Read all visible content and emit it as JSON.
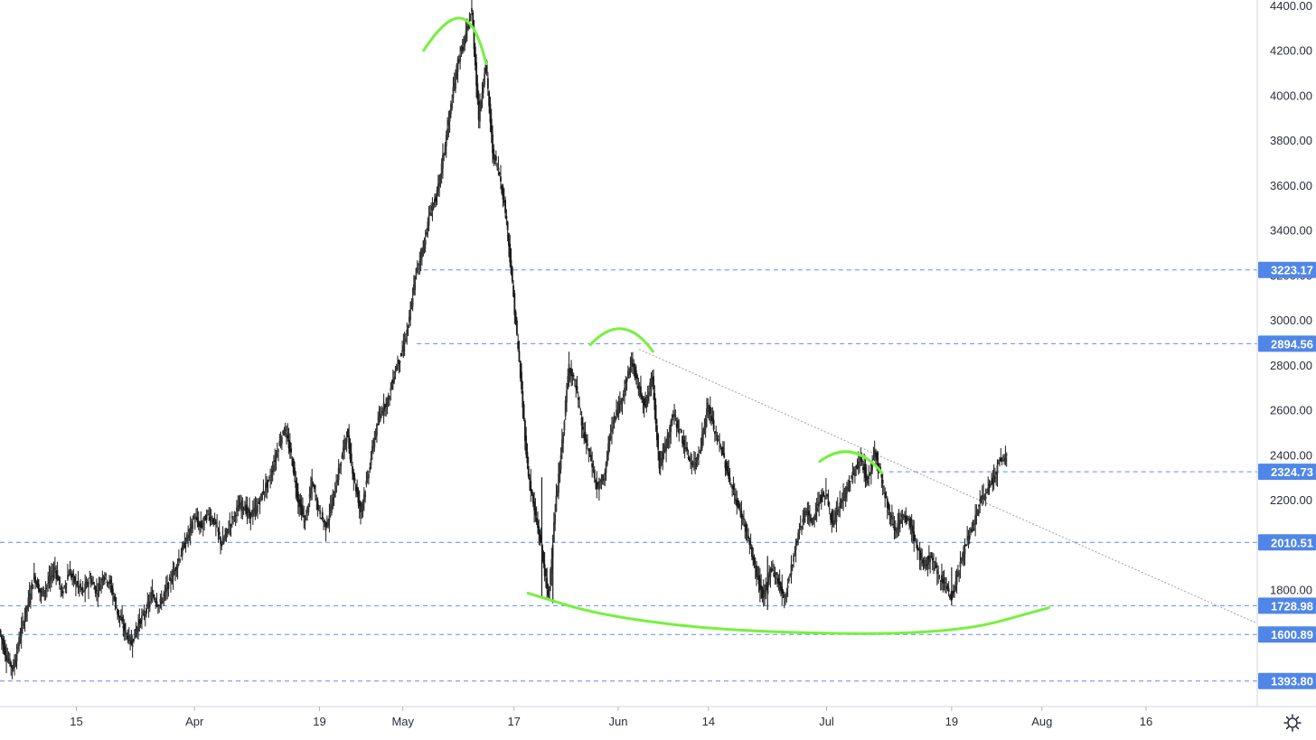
{
  "chart_data": {
    "type": "candlestick",
    "y_ticks": [
      1800,
      2000,
      2200,
      2400,
      2600,
      2800,
      3000,
      3200,
      3400,
      3600,
      3800,
      4000,
      4200,
      4400
    ],
    "y_tick_labels": [
      "1800.00",
      "2000.00",
      "2200.00",
      "2400.00",
      "2600.00",
      "2800.00",
      "3000.00",
      "3200.00",
      "3400.00",
      "3600.00",
      "3800.00",
      "4000.00",
      "4200.00",
      "4400.00"
    ],
    "ylim": [
      1280,
      4400
    ],
    "x_ticks": [
      {
        "day": 14,
        "label": "15"
      },
      {
        "day": 31,
        "label": "Apr"
      },
      {
        "day": 49,
        "label": "19"
      },
      {
        "day": 61,
        "label": "May"
      },
      {
        "day": 77,
        "label": "17"
      },
      {
        "day": 92,
        "label": "Jun"
      },
      {
        "day": 105,
        "label": "14"
      },
      {
        "day": 122,
        "label": "Jul"
      },
      {
        "day": 140,
        "label": "19"
      },
      {
        "day": 153,
        "label": "Aug"
      },
      {
        "day": 168,
        "label": "16"
      }
    ],
    "xlim": [
      3,
      184
    ],
    "levels": [
      {
        "value": 3223.17,
        "label": "3223.17",
        "from_day": 64
      },
      {
        "value": 2894.56,
        "label": "2894.56",
        "from_day": 63
      },
      {
        "value": 2324.73,
        "label": "2324.73",
        "from_day": 131
      },
      {
        "value": 2010.51,
        "label": "2010.51",
        "from_day": 3
      },
      {
        "value": 1728.98,
        "label": "1728.98",
        "from_day": 3
      },
      {
        "value": 1600.89,
        "label": "1600.89",
        "from_day": 3
      },
      {
        "value": 1393.8,
        "label": "1393.80",
        "from_day": 3
      }
    ],
    "trendline": {
      "from": {
        "day": 95,
        "value": 2870
      },
      "to": {
        "day": 184,
        "value": 1650
      }
    },
    "price_path": [
      [
        3,
        1620
      ],
      [
        4,
        1500
      ],
      [
        5,
        1450
      ],
      [
        6,
        1600
      ],
      [
        7,
        1730
      ],
      [
        8,
        1860
      ],
      [
        9,
        1780
      ],
      [
        10,
        1830
      ],
      [
        11,
        1900
      ],
      [
        12,
        1780
      ],
      [
        13,
        1880
      ],
      [
        14,
        1830
      ],
      [
        15,
        1790
      ],
      [
        16,
        1850
      ],
      [
        17,
        1790
      ],
      [
        18,
        1870
      ],
      [
        19,
        1820
      ],
      [
        20,
        1700
      ],
      [
        21,
        1620
      ],
      [
        22,
        1560
      ],
      [
        23,
        1650
      ],
      [
        24,
        1700
      ],
      [
        25,
        1780
      ],
      [
        26,
        1730
      ],
      [
        27,
        1800
      ],
      [
        28,
        1870
      ],
      [
        29,
        1950
      ],
      [
        30,
        2030
      ],
      [
        31,
        2120
      ],
      [
        32,
        2080
      ],
      [
        33,
        2140
      ],
      [
        34,
        2100
      ],
      [
        35,
        2000
      ],
      [
        36,
        2080
      ],
      [
        37,
        2150
      ],
      [
        38,
        2180
      ],
      [
        39,
        2130
      ],
      [
        40,
        2160
      ],
      [
        41,
        2240
      ],
      [
        42,
        2300
      ],
      [
        43,
        2420
      ],
      [
        44,
        2520
      ],
      [
        45,
        2400
      ],
      [
        46,
        2200
      ],
      [
        47,
        2100
      ],
      [
        48,
        2280
      ],
      [
        49,
        2150
      ],
      [
        50,
        2080
      ],
      [
        51,
        2200
      ],
      [
        52,
        2350
      ],
      [
        53,
        2500
      ],
      [
        54,
        2300
      ],
      [
        55,
        2150
      ],
      [
        56,
        2300
      ],
      [
        57,
        2480
      ],
      [
        58,
        2600
      ],
      [
        59,
        2650
      ],
      [
        60,
        2780
      ],
      [
        61,
        2860
      ],
      [
        62,
        3000
      ],
      [
        63,
        3220
      ],
      [
        64,
        3320
      ],
      [
        65,
        3480
      ],
      [
        66,
        3560
      ],
      [
        67,
        3750
      ],
      [
        68,
        3950
      ],
      [
        69,
        4150
      ],
      [
        70,
        4250
      ],
      [
        71,
        4380
      ],
      [
        72,
        3900
      ],
      [
        73,
        4150
      ],
      [
        74,
        3750
      ],
      [
        75,
        3650
      ],
      [
        76,
        3450
      ],
      [
        77,
        3100
      ],
      [
        78,
        2750
      ],
      [
        79,
        2350
      ],
      [
        80,
        2150
      ],
      [
        81,
        2000
      ],
      [
        82,
        1760
      ],
      [
        83,
        2150
      ],
      [
        84,
        2450
      ],
      [
        85,
        2800
      ],
      [
        86,
        2700
      ],
      [
        87,
        2500
      ],
      [
        88,
        2400
      ],
      [
        89,
        2250
      ],
      [
        90,
        2300
      ],
      [
        91,
        2500
      ],
      [
        92,
        2600
      ],
      [
        93,
        2700
      ],
      [
        94,
        2820
      ],
      [
        95,
        2700
      ],
      [
        96,
        2620
      ],
      [
        97,
        2750
      ],
      [
        98,
        2350
      ],
      [
        99,
        2450
      ],
      [
        100,
        2580
      ],
      [
        101,
        2500
      ],
      [
        102,
        2400
      ],
      [
        103,
        2350
      ],
      [
        104,
        2450
      ],
      [
        105,
        2620
      ],
      [
        106,
        2500
      ],
      [
        107,
        2420
      ],
      [
        108,
        2300
      ],
      [
        109,
        2200
      ],
      [
        110,
        2120
      ],
      [
        111,
        2000
      ],
      [
        112,
        1870
      ],
      [
        113,
        1760
      ],
      [
        114,
        1900
      ],
      [
        115,
        1850
      ],
      [
        116,
        1760
      ],
      [
        117,
        1900
      ],
      [
        118,
        2050
      ],
      [
        119,
        2150
      ],
      [
        120,
        2100
      ],
      [
        121,
        2200
      ],
      [
        122,
        2230
      ],
      [
        123,
        2080
      ],
      [
        124,
        2180
      ],
      [
        125,
        2250
      ],
      [
        126,
        2320
      ],
      [
        127,
        2380
      ],
      [
        128,
        2280
      ],
      [
        129,
        2420
      ],
      [
        130,
        2300
      ],
      [
        131,
        2150
      ],
      [
        132,
        2070
      ],
      [
        133,
        2120
      ],
      [
        134,
        2100
      ],
      [
        135,
        2000
      ],
      [
        136,
        1900
      ],
      [
        137,
        1950
      ],
      [
        138,
        1870
      ],
      [
        139,
        1840
      ],
      [
        140,
        1760
      ],
      [
        141,
        1870
      ],
      [
        142,
        2000
      ],
      [
        143,
        2060
      ],
      [
        144,
        2180
      ],
      [
        145,
        2230
      ],
      [
        146,
        2290
      ],
      [
        147,
        2370
      ],
      [
        148,
        2390
      ]
    ],
    "annotations": [
      {
        "type": "arc",
        "points": [
          [
            64,
            4200
          ],
          [
            68.5,
            4410
          ],
          [
            71,
            4390
          ],
          [
            73,
            4140
          ]
        ]
      },
      {
        "type": "arc",
        "points": [
          [
            88,
            2890
          ],
          [
            91,
            2990
          ],
          [
            94,
            2990
          ],
          [
            97,
            2860
          ]
        ]
      },
      {
        "type": "arc",
        "points": [
          [
            121,
            2370
          ],
          [
            124,
            2440
          ],
          [
            127,
            2430
          ],
          [
            130,
            2320
          ]
        ]
      },
      {
        "type": "curve",
        "points": [
          [
            79,
            1785
          ],
          [
            90,
            1680
          ],
          [
            110,
            1610
          ],
          [
            140,
            1600
          ],
          [
            154,
            1720
          ]
        ]
      }
    ],
    "colors": {
      "candles": "#1b1b1b",
      "annotation": "#77f040",
      "levels": "#2962ff",
      "label_bg": "#4f86e8",
      "trend": "#9aa0ab"
    }
  }
}
